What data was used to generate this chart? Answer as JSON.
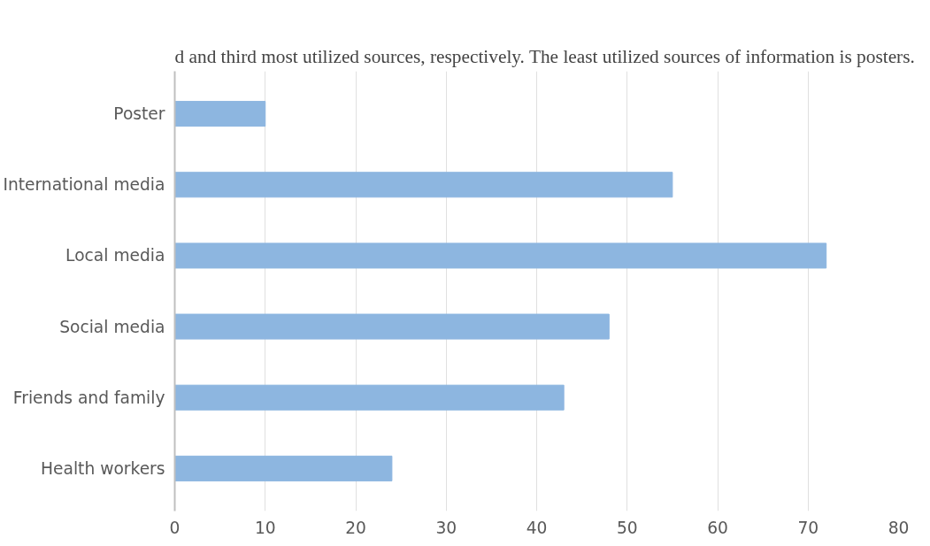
{
  "chart_data": {
    "type": "bar",
    "orientation": "horizontal",
    "categories": [
      "Poster",
      "International media",
      "Local media",
      "Social media",
      "Friends and family",
      "Health workers"
    ],
    "values": [
      10,
      55,
      72,
      48,
      43,
      24
    ],
    "color": "#8db6e0",
    "xlim": [
      0,
      80
    ],
    "xticks": [
      0,
      10,
      20,
      30,
      40,
      50,
      60,
      70,
      80
    ],
    "grid": "x",
    "annotations": [
      "d and third most utilized sources, respectively. The least utilized sources of information is posters."
    ]
  }
}
